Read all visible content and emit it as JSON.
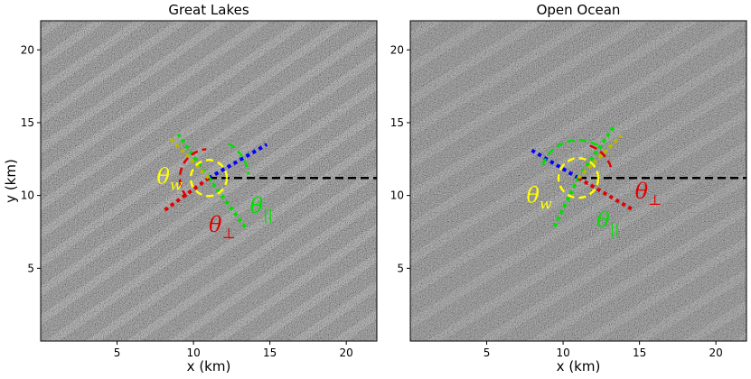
{
  "chart_data": [
    {
      "type": "image",
      "title": "Great Lakes",
      "xlabel": "x (km)",
      "ylabel": "y (km)",
      "xlim": [
        0,
        22
      ],
      "ylim": [
        0,
        22
      ],
      "xticks": [
        5,
        10,
        15,
        20
      ],
      "yticks": [
        5,
        10,
        15,
        20
      ],
      "origin_km": [
        11.0,
        11.2
      ],
      "reference_line": {
        "style": "dashed",
        "color": "#000000",
        "x": [
          11.0,
          22.0
        ],
        "y": [
          11.2,
          11.2
        ]
      },
      "direction_lines": [
        {
          "color": "#0000ff",
          "style": "dotted",
          "x": [
            11.0,
            14.8
          ],
          "y": [
            11.2,
            13.5
          ]
        },
        {
          "color": "#00e000",
          "style": "dotted",
          "x": [
            11.0,
            9.0
          ],
          "y": [
            11.2,
            14.2
          ]
        },
        {
          "color": "#00e000",
          "style": "dotted",
          "x": [
            11.0,
            13.4
          ],
          "y": [
            11.2,
            7.8
          ]
        },
        {
          "color": "#e00000",
          "style": "dotted",
          "x": [
            11.0,
            8.0
          ],
          "y": [
            11.2,
            8.9
          ]
        },
        {
          "color": "#b8b800",
          "style": "dotted",
          "x": [
            11.0,
            8.4
          ],
          "y": [
            11.2,
            14.0
          ]
        }
      ],
      "angle_labels": [
        {
          "symbol": "θ",
          "subscript": "w",
          "color": "#ffff00",
          "x": 7.6,
          "y": 10.8
        },
        {
          "symbol": "θ",
          "subscript": "⊥",
          "color": "#e00000",
          "x": 11.0,
          "y": 7.5
        },
        {
          "symbol": "θ",
          "subscript": "||",
          "color": "#00e000",
          "x": 13.7,
          "y": 8.8
        }
      ]
    },
    {
      "type": "image",
      "title": "Open Ocean",
      "xlabel": "x (km)",
      "ylabel": "",
      "xlim": [
        0,
        22
      ],
      "ylim": [
        0,
        22
      ],
      "xticks": [
        5,
        10,
        15,
        20
      ],
      "yticks": [
        5,
        10,
        15,
        20
      ],
      "origin_km": [
        11.0,
        11.2
      ],
      "reference_line": {
        "style": "dashed",
        "color": "#000000",
        "x": [
          11.0,
          22.0
        ],
        "y": [
          11.2,
          11.2
        ]
      },
      "direction_lines": [
        {
          "color": "#0000ff",
          "style": "dotted",
          "x": [
            11.0,
            7.8
          ],
          "y": [
            11.2,
            13.2
          ]
        },
        {
          "color": "#00e000",
          "style": "dotted",
          "x": [
            11.0,
            13.3
          ],
          "y": [
            11.2,
            14.7
          ]
        },
        {
          "color": "#00e000",
          "style": "dotted",
          "x": [
            11.0,
            9.4
          ],
          "y": [
            11.2,
            7.8
          ]
        },
        {
          "color": "#e00000",
          "style": "dotted",
          "x": [
            11.0,
            14.6
          ],
          "y": [
            11.2,
            9.0
          ]
        },
        {
          "color": "#b8b800",
          "style": "dotted",
          "x": [
            11.0,
            13.8
          ],
          "y": [
            11.2,
            14.1
          ]
        }
      ],
      "angle_labels": [
        {
          "symbol": "θ",
          "subscript": "w",
          "color": "#ffff00",
          "x": 7.6,
          "y": 9.5
        },
        {
          "symbol": "θ",
          "subscript": "⊥",
          "color": "#e00000",
          "x": 14.7,
          "y": 9.8
        },
        {
          "symbol": "θ",
          "subscript": "||",
          "color": "#00e000",
          "x": 12.2,
          "y": 7.8
        }
      ]
    }
  ]
}
